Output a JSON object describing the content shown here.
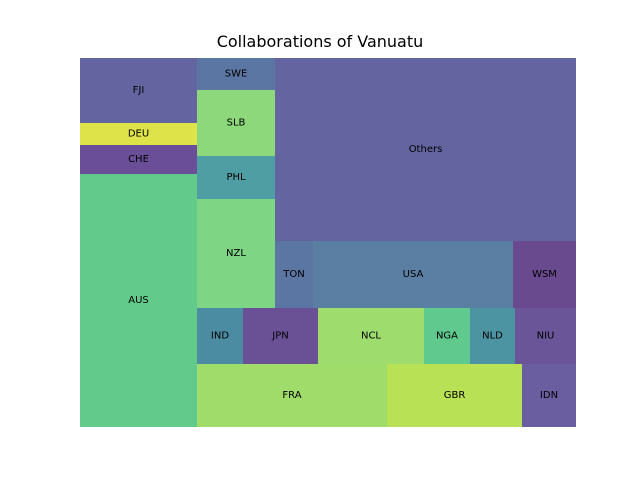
{
  "chart_data": {
    "type": "treemap",
    "title": "Collaborations of Vanuatu",
    "cells": [
      {
        "label": "FJI",
        "color": "#6364a0"
      },
      {
        "label": "DEU",
        "color": "#dfe34a"
      },
      {
        "label": "CHE",
        "color": "#6a4f98"
      },
      {
        "label": "AUS",
        "color": "#62cb8c"
      },
      {
        "label": "SWE",
        "color": "#5b76a2"
      },
      {
        "label": "SLB",
        "color": "#8cd87a"
      },
      {
        "label": "PHL",
        "color": "#4e9ea3"
      },
      {
        "label": "NZL",
        "color": "#7ed584"
      },
      {
        "label": "Others",
        "color": "#6364a0"
      },
      {
        "label": "TON",
        "color": "#5b76a2"
      },
      {
        "label": "USA",
        "color": "#5a7fa3"
      },
      {
        "label": "WSM",
        "color": "#6a4a8e"
      },
      {
        "label": "IND",
        "color": "#4c8ca3"
      },
      {
        "label": "JPN",
        "color": "#6a5196"
      },
      {
        "label": "NCL",
        "color": "#9edc6e"
      },
      {
        "label": "NGA",
        "color": "#5fc98e"
      },
      {
        "label": "NLD",
        "color": "#4d94a3"
      },
      {
        "label": "NIU",
        "color": "#6a5599"
      },
      {
        "label": "FRA",
        "color": "#a0dc6a"
      },
      {
        "label": "GBR",
        "color": "#b9e156"
      },
      {
        "label": "IDN",
        "color": "#6a5da0"
      }
    ]
  }
}
